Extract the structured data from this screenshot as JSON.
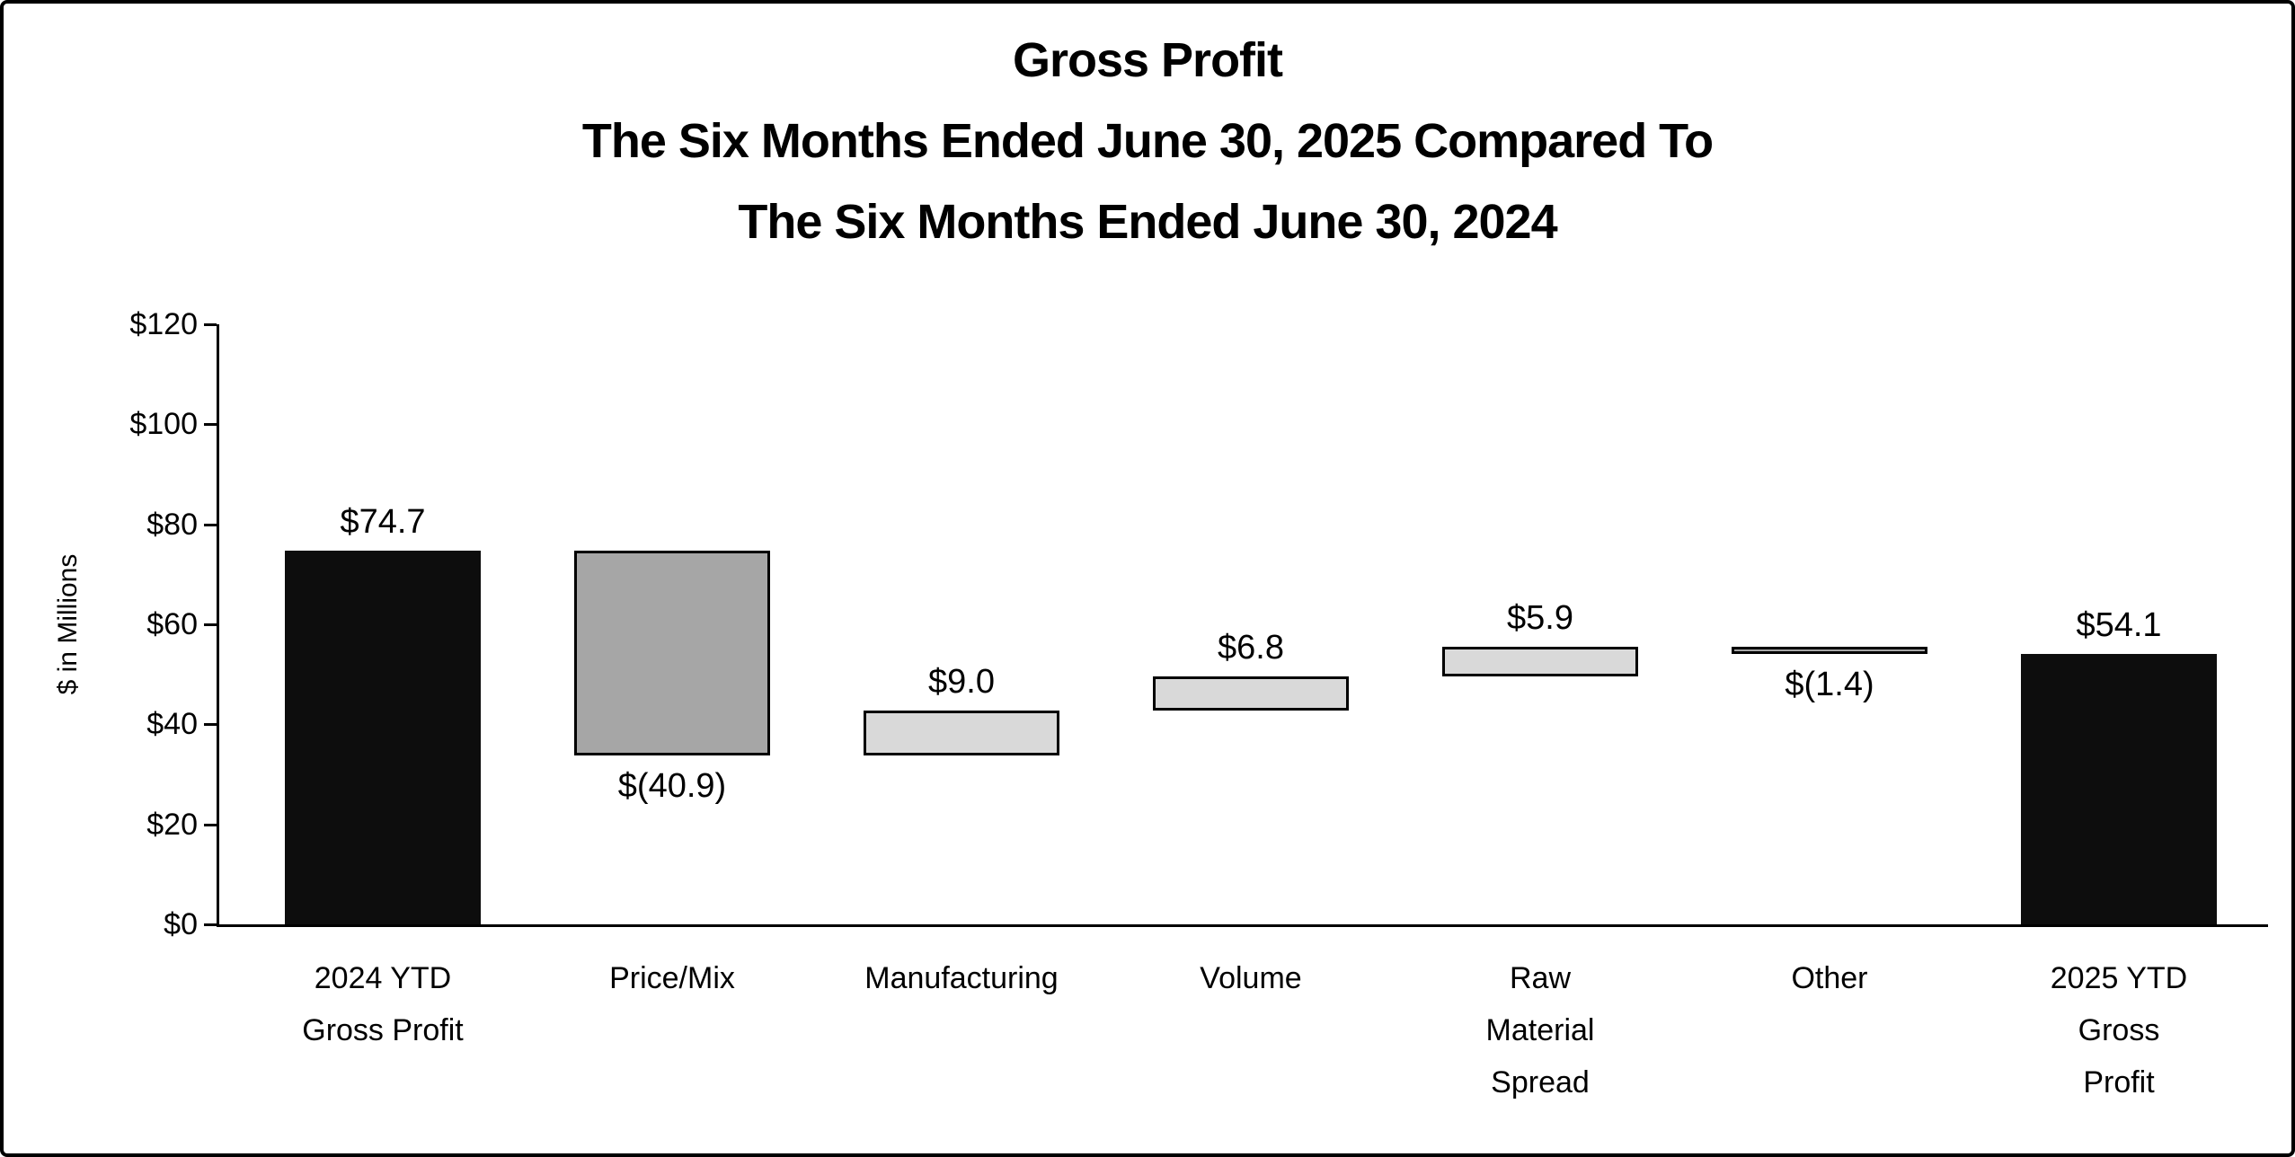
{
  "frame": {
    "background": "#ffffff",
    "border_color": "#000000"
  },
  "chart_data": {
    "type": "bar",
    "subtype": "waterfall",
    "title_lines": [
      "Gross Profit",
      "The Six Months Ended June 30, 2025 Compared To",
      "The Six Months Ended June 30, 2024"
    ],
    "ylabel": "$ in Millions",
    "xlabel": "",
    "ylim": [
      0,
      120
    ],
    "ytick_step": 20,
    "ytick_labels": [
      "$0",
      "$20",
      "$40",
      "$60",
      "$80",
      "$100",
      "$120"
    ],
    "grid": false,
    "legend": "none",
    "bars": [
      {
        "category_lines": [
          "2024 YTD",
          "Gross Profit"
        ],
        "value": 74.7,
        "display_value": "$74.7",
        "start": 0,
        "end": 74.7,
        "kind": "total",
        "value_label_position": "above"
      },
      {
        "category_lines": [
          "Price/Mix"
        ],
        "value": -40.9,
        "display_value": "$(40.9)",
        "start": 74.7,
        "end": 33.8,
        "kind": "decrease",
        "value_label_position": "below"
      },
      {
        "category_lines": [
          "Manufacturing"
        ],
        "value": 9.0,
        "display_value": "$9.0",
        "start": 33.8,
        "end": 42.8,
        "kind": "increase",
        "value_label_position": "above"
      },
      {
        "category_lines": [
          "Volume"
        ],
        "value": 6.8,
        "display_value": "$6.8",
        "start": 42.8,
        "end": 49.6,
        "kind": "increase",
        "value_label_position": "above"
      },
      {
        "category_lines": [
          "Raw",
          "Material",
          "Spread"
        ],
        "value": 5.9,
        "display_value": "$5.9",
        "start": 49.6,
        "end": 55.5,
        "kind": "increase",
        "value_label_position": "above"
      },
      {
        "category_lines": [
          "Other"
        ],
        "value": -1.4,
        "display_value": "$(1.4)",
        "start": 55.5,
        "end": 54.1,
        "kind": "decrease",
        "value_label_position": "below"
      },
      {
        "category_lines": [
          "2025 YTD",
          "Gross",
          "Profit"
        ],
        "value": 54.1,
        "display_value": "$54.1",
        "start": 0,
        "end": 54.1,
        "kind": "total",
        "value_label_position": "above"
      }
    ],
    "colors": {
      "total": "#0d0d0d",
      "increase": "#d9d9d9",
      "decrease": "#a6a6a6",
      "bar_border": "#000000",
      "axis": "#000000",
      "text": "#000000"
    }
  }
}
